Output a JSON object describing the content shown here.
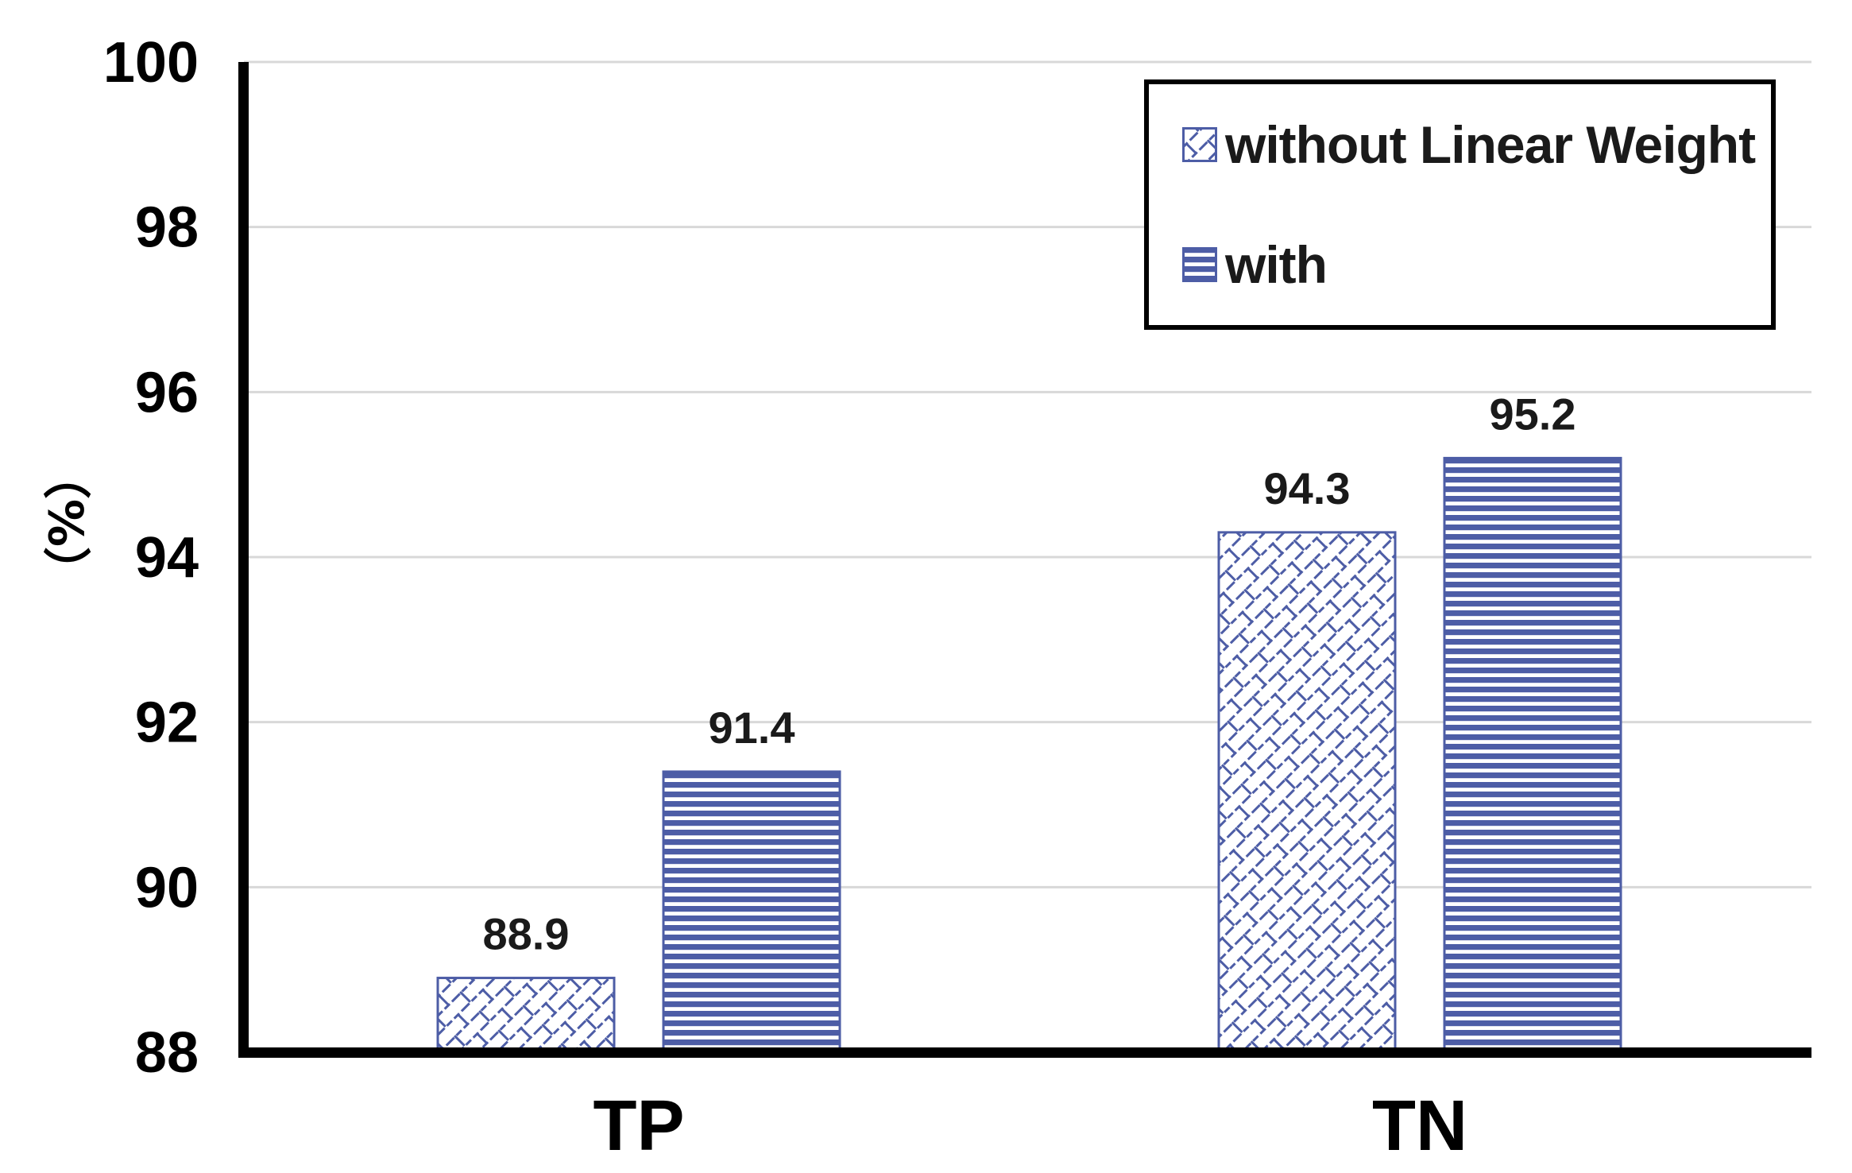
{
  "colors": {
    "bar_blue": "#4D5DA6",
    "bar_background": "#FFFFFF",
    "axis_black": "#000000",
    "gridline_gray": "#D8D8D8",
    "data_label_text": "#1A1A1A",
    "legend_border": "#000000"
  },
  "chart_data": {
    "type": "bar",
    "title": "",
    "categories": [
      "TP",
      "TN"
    ],
    "series": [
      {
        "name": "without Linear Weight",
        "pattern": "diagonal-brick",
        "values": [
          88.9,
          94.3
        ]
      },
      {
        "name": "with",
        "pattern": "horizontal-stripes",
        "values": [
          91.4,
          95.2
        ]
      }
    ],
    "data_labels": [
      [
        "88.9",
        "94.3"
      ],
      [
        "91.4",
        "95.2"
      ]
    ],
    "ylabel": "（%）",
    "xlabel": "",
    "ylim": [
      88,
      100
    ],
    "yticks": [
      88,
      90,
      92,
      94,
      96,
      98,
      100
    ],
    "grid": true,
    "legend_position": "top-right"
  }
}
